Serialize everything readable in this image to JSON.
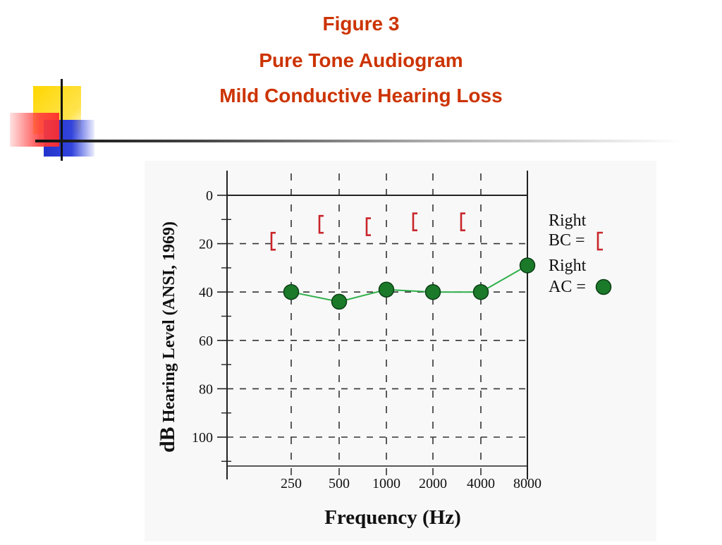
{
  "slide": {
    "figure_label": "Figure 3",
    "title": "Pure Tone Audiogram",
    "subtitle": "Mild Conductive Hearing Loss"
  },
  "colors": {
    "title": "#cc3300",
    "ac_marker": "#1b7a2a",
    "ac_line": "#2fb04a",
    "bc_marker": "#c8262b",
    "deco_yellow": "#ffd700",
    "deco_red": "#ff4040",
    "deco_blue": "#2233cc"
  },
  "chart_data": {
    "type": "line",
    "ylabel": "dB Hearing Level (ANSI, 1969)",
    "ylabel_bold": "dB",
    "ylabel_rest": "Hearing Level (ANSI, 1969)",
    "xlabel": "Frequency (Hz)",
    "x": [
      "250",
      "500",
      "1000",
      "2000",
      "4000",
      "8000"
    ],
    "y_ticks": [
      "0",
      "20",
      "40",
      "60",
      "80",
      "100"
    ],
    "ylim": [
      0,
      110
    ],
    "y_inverted": true,
    "grid": "dashed",
    "series": [
      {
        "name": "Right AC",
        "marker": "filled-circle",
        "x": [
          "250",
          "500",
          "1000",
          "2000",
          "4000",
          "8000"
        ],
        "values": [
          40,
          44,
          39,
          40,
          40,
          29
        ]
      },
      {
        "name": "Right BC",
        "marker": "left-bracket",
        "x": [
          "250",
          "500",
          "1000",
          "2000",
          "4000"
        ],
        "values": [
          19,
          12,
          13,
          11,
          11
        ]
      }
    ],
    "legend": {
      "placement": "right",
      "bc_line1": "Right",
      "bc_line2": "BC =",
      "ac_line1": "Right",
      "ac_line2": "AC ="
    }
  }
}
